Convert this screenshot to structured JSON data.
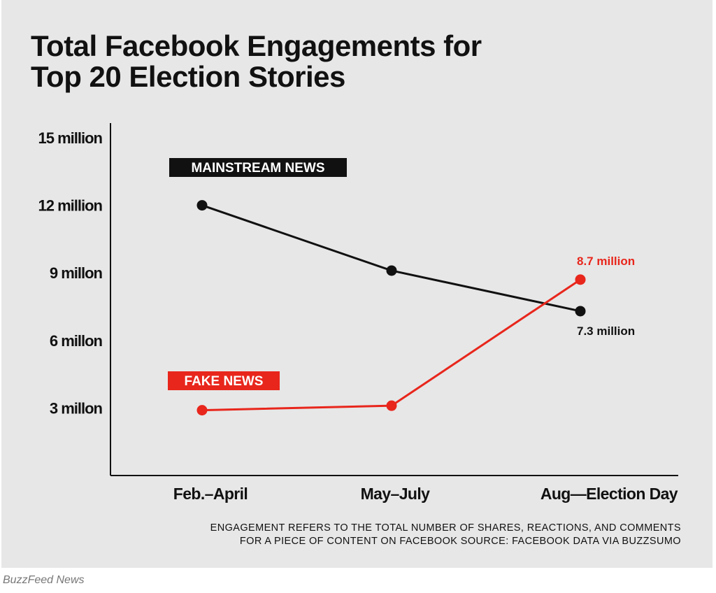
{
  "chart_data": {
    "type": "line",
    "title_lines": [
      "Total Facebook Engagements for",
      "Top 20 Election Stories"
    ],
    "categories": [
      "Feb.–April",
      "May–July",
      "Aug—Election Day"
    ],
    "ylim": [
      0,
      15
    ],
    "yticks": [
      {
        "value": 3,
        "label": "3 millon"
      },
      {
        "value": 6,
        "label": "6 millon"
      },
      {
        "value": 9,
        "label": "9 millon"
      },
      {
        "value": 12,
        "label": "12 million"
      },
      {
        "value": 15,
        "label": "15 million"
      }
    ],
    "grid": false,
    "series": [
      {
        "name": "MAINSTREAM NEWS",
        "color": "#111111",
        "values": [
          12,
          9.1,
          7.3
        ],
        "end_label": "7.3 million"
      },
      {
        "name": "FAKE NEWS",
        "color": "#e8261c",
        "values": [
          2.9,
          3.1,
          8.7
        ],
        "end_label": "8.7 million"
      }
    ]
  },
  "footnote": {
    "line1": "ENGAGEMENT REFERS TO THE TOTAL NUMBER OF SHARES, REACTIONS, AND COMMENTS",
    "line2": "FOR A PIECE OF CONTENT ON FACEBOOK SOURCE: FACEBOOK DATA VIA BUZZSUMO"
  },
  "credit": "BuzzFeed News"
}
